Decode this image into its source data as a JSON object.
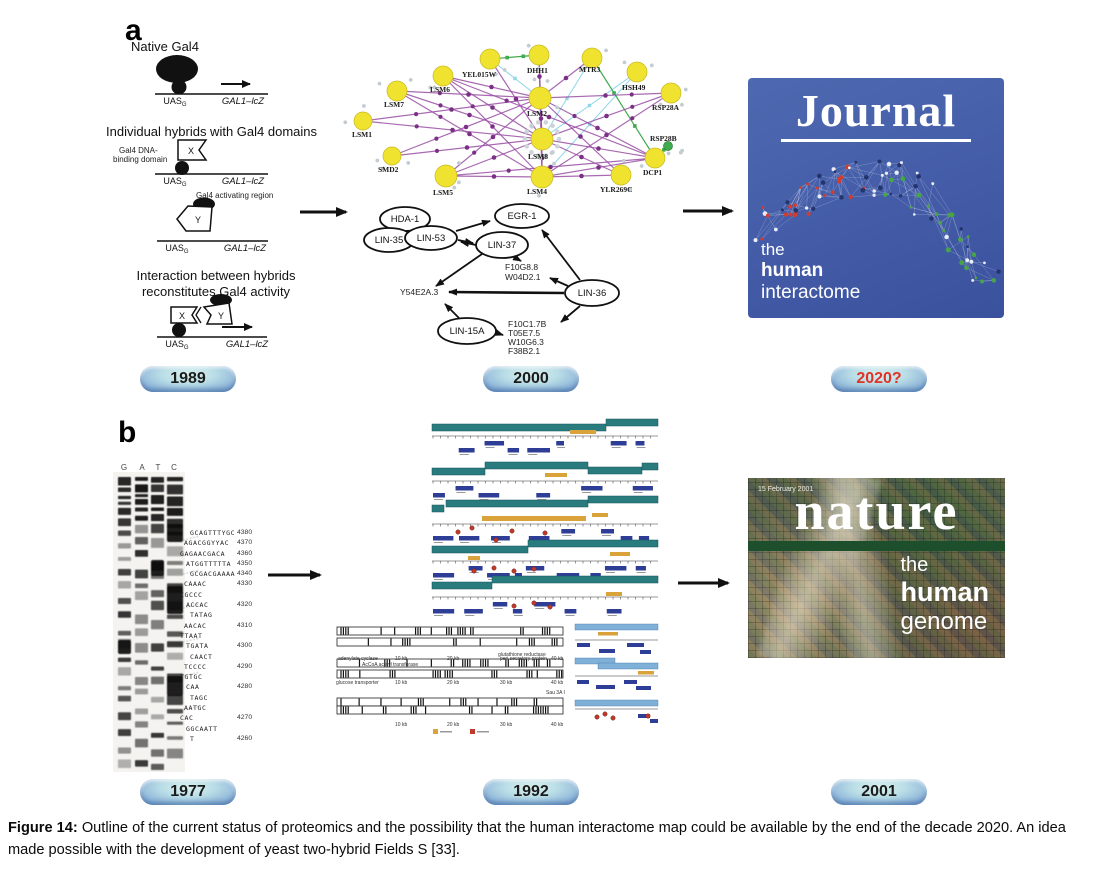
{
  "panel_a": {
    "label": "a",
    "gal4": {
      "native_title": "Native Gal4",
      "hybrids_title": "Individual hybrids with Gal4 domains",
      "dna_binding_line1": "Gal4 DNA-",
      "dna_binding_line2": "binding domain",
      "activating_label": "Gal4 activating region",
      "interaction_line1": "Interaction between hybrids",
      "interaction_line2": "reconstitutes Gal4 activity",
      "uas": "UAS",
      "uas_sub": "G",
      "gene": "GAL1–lcZ",
      "x": "X",
      "y": "Y"
    },
    "yeast_network": {
      "nodes": [
        "LSM1",
        "LSM7",
        "LSM6",
        "YEL015W",
        "DHH1",
        "MTR3",
        "HSH49",
        "RSP28A",
        "RSP28B",
        "SMD2",
        "LSM5",
        "LSM2",
        "LSM8",
        "LSM4",
        "YLR269C",
        "DCP1"
      ]
    },
    "worm_network": {
      "ovals": [
        "HDA-1",
        "LIN-35",
        "LIN-53",
        "EGR-1",
        "LIN-37",
        "LIN-36",
        "LIN-15A"
      ],
      "genes": [
        "F10G8.8",
        "W04D2.1",
        "Y54E2A.3",
        "F10C1.7B",
        "T05E7.5",
        "W10G6.3",
        "F38B2.1"
      ]
    },
    "journal_cover": {
      "title": "Journal",
      "line1": "the",
      "line2": "human",
      "line3": "interactome"
    },
    "badges": {
      "y1989": "1989",
      "y2000": "2000",
      "y2020": "2020?"
    }
  },
  "panel_b": {
    "label": "b",
    "gel": {
      "lanes": [
        "G",
        "A",
        "T",
        "C"
      ],
      "rows": [
        {
          "seq": "GCAGTTTYGC",
          "num": "4380"
        },
        {
          "seq": "AGACGGYYAC",
          "num": "4370"
        },
        {
          "seq": "GAGAACGACA",
          "num": "4360"
        },
        {
          "seq": "ATGGTTTTTA",
          "num": "4350"
        },
        {
          "seq": "GCGACGAAAA",
          "num": "4340"
        },
        {
          "seq": "CAAAC",
          "num": "4330"
        },
        {
          "seq": "CGCCC",
          "num": ""
        },
        {
          "seq": "ACCAC",
          "num": "4320"
        },
        {
          "seq": "TATAG",
          "num": ""
        },
        {
          "seq": "AACAC",
          "num": "4310"
        },
        {
          "seq": "TTAAT",
          "num": ""
        },
        {
          "seq": "TGATA",
          "num": "4300"
        },
        {
          "seq": "CAACT",
          "num": ""
        },
        {
          "seq": "TCCCC",
          "num": "4290"
        },
        {
          "seq": "TGTGC",
          "num": ""
        },
        {
          "seq": "CAA",
          "num": "4280"
        },
        {
          "seq": "TAGC",
          "num": ""
        },
        {
          "seq": "AATGC",
          "num": ""
        },
        {
          "seq": "CAC",
          "num": "4270"
        },
        {
          "seq": "GGCAATT",
          "num": ""
        },
        {
          "seq": "T",
          "num": "4260"
        }
      ]
    },
    "map_labels": {
      "kb10": "10 kb",
      "kb20": "20 kb",
      "kb30": "30 kb",
      "kb40": "40 kb",
      "adenylate": "adenylate cyclase",
      "accoa": "AcCoA acetyl transferase",
      "peri": "peri secretory protein",
      "glucose": "glucose transporter",
      "glutathione": "glutathione reductase",
      "sau": "Sau 3A I"
    },
    "nature_cover": {
      "date": "15 February 2001",
      "title": "nature",
      "line1": "the",
      "line2": "human",
      "line3": "genome"
    },
    "badges": {
      "y1977": "1977",
      "y1992": "1992",
      "y2001": "2001"
    }
  },
  "caption": {
    "label": "Figure 14:",
    "text": "Outline of the current status of proteomics and the possibility that the human interactome map could be available by the end of the decade 2020. An idea made possible with the development of yeast two-hybrid Fields S [33]."
  },
  "colors": {
    "badge_blue": "#6a96cc",
    "journal_blue": "#445ca8",
    "nature_green": "#1d4f2c",
    "network_purple": "#9a4fa5",
    "node_yellow": "#efe32f",
    "map_teal": "#2a7b7e",
    "gene_blue": "#2e3e96",
    "highlight_orange": "#d9a23a",
    "dot_red": "#c0392b",
    "year_red": "#e03226"
  }
}
